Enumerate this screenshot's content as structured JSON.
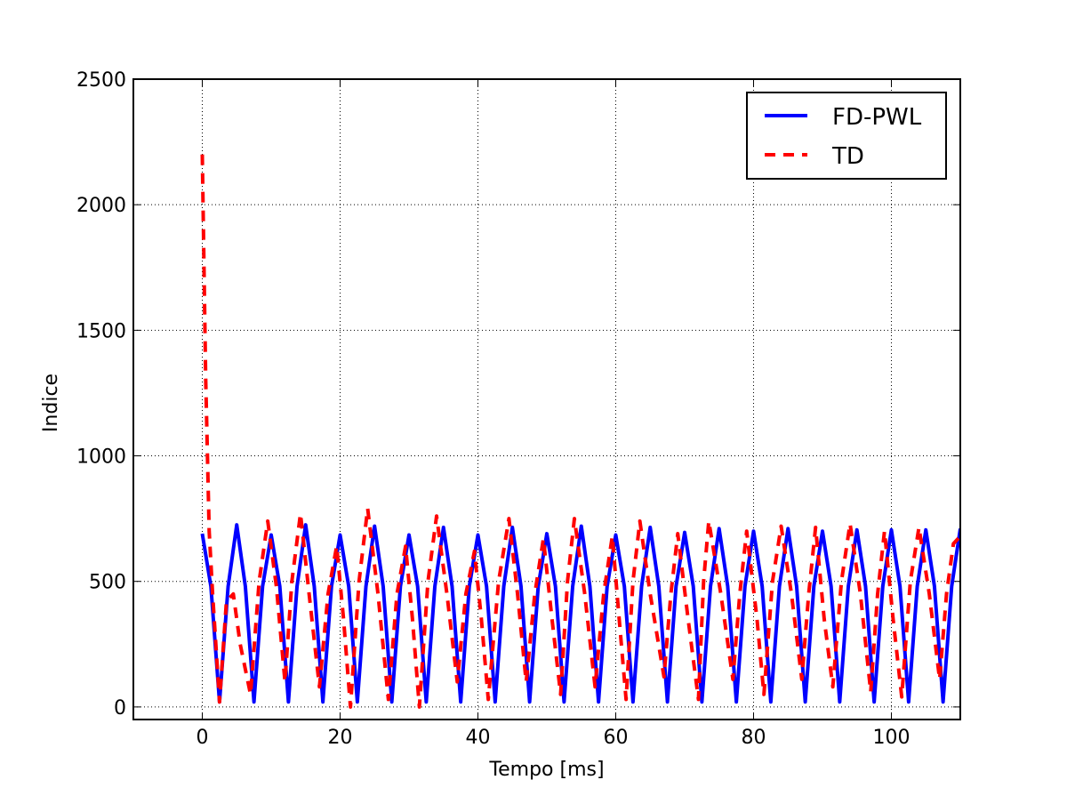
{
  "chart_data": {
    "type": "line",
    "xlabel": "Tempo [ms]",
    "ylabel": "Indice",
    "xlim": [
      -10,
      110
    ],
    "ylim": [
      -50,
      2500
    ],
    "xticks": [
      0,
      20,
      40,
      60,
      80,
      100
    ],
    "yticks": [
      0,
      500,
      1000,
      1500,
      2000,
      2500
    ],
    "grid": true,
    "legend": "upper right",
    "series": [
      {
        "name": "FD-PWL",
        "color": "#0000ff",
        "linestyle": "solid",
        "x": [
          0,
          1.25,
          2.5,
          3.75,
          5,
          6.25,
          7.5,
          8.75,
          10,
          11.25,
          12.5,
          13.75,
          15,
          16.25,
          17.5,
          18.75,
          20,
          21.25,
          22.5,
          23.75,
          25,
          26.25,
          27.5,
          28.75,
          30,
          31.25,
          32.5,
          33.75,
          35,
          36.25,
          37.5,
          38.75,
          40,
          41.25,
          42.5,
          43.75,
          45,
          46.25,
          47.5,
          48.75,
          50,
          51.25,
          52.5,
          53.75,
          55,
          56.25,
          57.5,
          58.75,
          60,
          61.25,
          62.5,
          63.75,
          65,
          66.25,
          67.5,
          68.75,
          70,
          71.25,
          72.5,
          73.75,
          75,
          76.25,
          77.5,
          78.75,
          80,
          81.25,
          82.5,
          83.75,
          85,
          86.25,
          87.5,
          88.75,
          90,
          91.25,
          92.5,
          93.75,
          95,
          96.25,
          97.5,
          98.75,
          100,
          101.25,
          102.5,
          103.75,
          105,
          106.25,
          107.5,
          108.75,
          110
        ],
        "values": [
          690,
          480,
          20,
          480,
          725,
          480,
          20,
          480,
          685,
          480,
          20,
          480,
          725,
          480,
          20,
          480,
          685,
          480,
          20,
          480,
          720,
          480,
          20,
          480,
          685,
          480,
          20,
          480,
          715,
          480,
          20,
          480,
          685,
          480,
          20,
          480,
          715,
          480,
          20,
          480,
          690,
          480,
          20,
          480,
          720,
          480,
          20,
          480,
          685,
          480,
          20,
          480,
          715,
          480,
          20,
          480,
          695,
          480,
          20,
          480,
          710,
          480,
          20,
          480,
          700,
          480,
          20,
          480,
          710,
          480,
          20,
          480,
          700,
          480,
          20,
          480,
          705,
          480,
          20,
          480,
          705,
          480,
          20,
          480,
          705,
          480,
          20,
          480,
          710
        ]
      },
      {
        "name": "TD",
        "color": "#ff0000",
        "linestyle": "dashed",
        "x": [
          0,
          0.5,
          1,
          1.5,
          2.5,
          3.5,
          4.5,
          5.5,
          7,
          8.25,
          9.5,
          10.75,
          12,
          13,
          14.25,
          15.5,
          17,
          18.25,
          19.5,
          20.5,
          21.5,
          22.75,
          24,
          25.5,
          27,
          28.25,
          29.5,
          30.5,
          31.5,
          32.75,
          34,
          35.5,
          37,
          38.25,
          39.5,
          40.5,
          41.5,
          43,
          44.5,
          45.75,
          47,
          48.25,
          49.5,
          50.75,
          52,
          53,
          54,
          55.5,
          57,
          58.25,
          59.5,
          60.5,
          61.5,
          62.5,
          63.5,
          65,
          67,
          68,
          69,
          70.5,
          72,
          72.75,
          73.5,
          75.25,
          77,
          78,
          79,
          80.5,
          81.5,
          82.75,
          84,
          85.5,
          87,
          88,
          89,
          90.25,
          91.5,
          92.75,
          94,
          95.5,
          97,
          98,
          99,
          100.25,
          101.5,
          102.75,
          104,
          105.5,
          107,
          108,
          109,
          110
        ],
        "values": [
          2200,
          1300,
          700,
          450,
          20,
          420,
          450,
          250,
          50,
          500,
          740,
          480,
          100,
          500,
          770,
          450,
          80,
          450,
          640,
          350,
          0,
          500,
          790,
          450,
          30,
          450,
          640,
          350,
          0,
          500,
          760,
          450,
          100,
          450,
          620,
          350,
          30,
          500,
          750,
          450,
          100,
          450,
          670,
          350,
          50,
          500,
          750,
          450,
          80,
          450,
          680,
          350,
          30,
          500,
          740,
          450,
          120,
          450,
          690,
          350,
          30,
          500,
          740,
          450,
          110,
          450,
          700,
          350,
          50,
          500,
          720,
          450,
          110,
          450,
          715,
          350,
          80,
          500,
          730,
          450,
          60,
          450,
          700,
          350,
          40,
          500,
          715,
          450,
          110,
          450,
          650,
          680
        ]
      }
    ]
  }
}
